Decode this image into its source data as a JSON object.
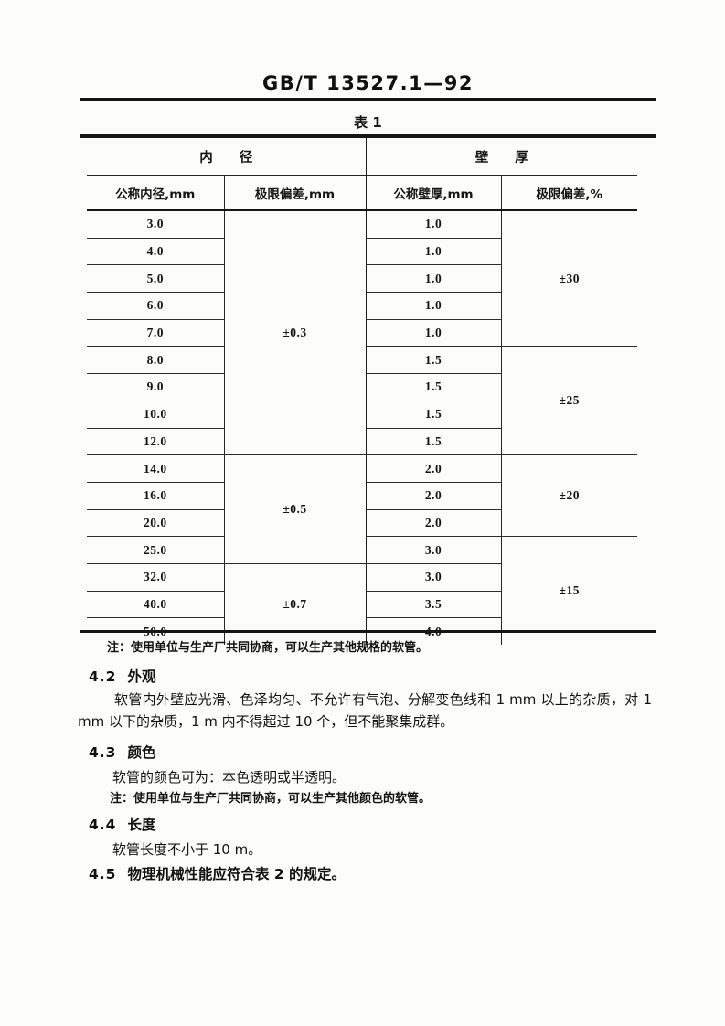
{
  "page": {
    "doc_number": "GB/T 13527.1—92",
    "table_caption": "表 1"
  },
  "table": {
    "group_headers": {
      "inner_diameter": "内　　径",
      "wall_thickness": "壁　　厚"
    },
    "col_headers": [
      "公称内径,mm",
      "极限偏差,mm",
      "公称壁厚,mm",
      "极限偏差,%"
    ],
    "rows": [
      {
        "nominal_bore": "3.0",
        "nominal_wall": "1.0"
      },
      {
        "nominal_bore": "4.0",
        "nominal_wall": "1.0"
      },
      {
        "nominal_bore": "5.0",
        "nominal_wall": "1.0"
      },
      {
        "nominal_bore": "6.0",
        "nominal_wall": "1.0"
      },
      {
        "nominal_bore": "7.0",
        "nominal_wall": "1.0"
      },
      {
        "nominal_bore": "8.0",
        "nominal_wall": "1.5"
      },
      {
        "nominal_bore": "9.0",
        "nominal_wall": "1.5"
      },
      {
        "nominal_bore": "10.0",
        "nominal_wall": "1.5"
      },
      {
        "nominal_bore": "12.0",
        "nominal_wall": "1.5"
      },
      {
        "nominal_bore": "14.0",
        "nominal_wall": "2.0"
      },
      {
        "nominal_bore": "16.0",
        "nominal_wall": "2.0"
      },
      {
        "nominal_bore": "20.0",
        "nominal_wall": "2.0"
      },
      {
        "nominal_bore": "25.0",
        "nominal_wall": "3.0"
      },
      {
        "nominal_bore": "32.0",
        "nominal_wall": "3.0"
      },
      {
        "nominal_bore": "40.0",
        "nominal_wall": "3.5"
      },
      {
        "nominal_bore": "50.0",
        "nominal_wall": "4.0"
      }
    ],
    "bore_tolerance_groups": [
      {
        "label": "±0.3",
        "rows": 9
      },
      {
        "label": "±0.5",
        "rows": 4
      },
      {
        "label": "±0.7",
        "rows": 3
      }
    ],
    "wall_tolerance_groups": [
      {
        "label": "±30",
        "rows": 5
      },
      {
        "label": "±25",
        "rows": 4
      },
      {
        "label": "±20",
        "rows": 3
      },
      {
        "label": "±15",
        "rows": 4
      }
    ],
    "note": "注：使用单位与生产厂共同协商，可以生产其他规格的软管。"
  },
  "sections": {
    "s42": {
      "number": "4.2",
      "title": "外观",
      "body": "软管内外壁应光滑、色泽均匀、不允许有气泡、分解变色线和 1 mm 以上的杂质，对 1 mm 以下的杂质，1 m 内不得超过 10 个，但不能聚集成群。"
    },
    "s43": {
      "number": "4.3",
      "title": "颜色",
      "body": "软管的颜色可为：本色透明或半透明。",
      "note": "注：使用单位与生产厂共同协商，可以生产其他颜色的软管。"
    },
    "s44": {
      "number": "4.4",
      "title": "长度",
      "body": "软管长度不小于 10 m。"
    },
    "s45": {
      "number": "4.5",
      "title": "物理机械性能应符合表 2 的规定。"
    }
  }
}
